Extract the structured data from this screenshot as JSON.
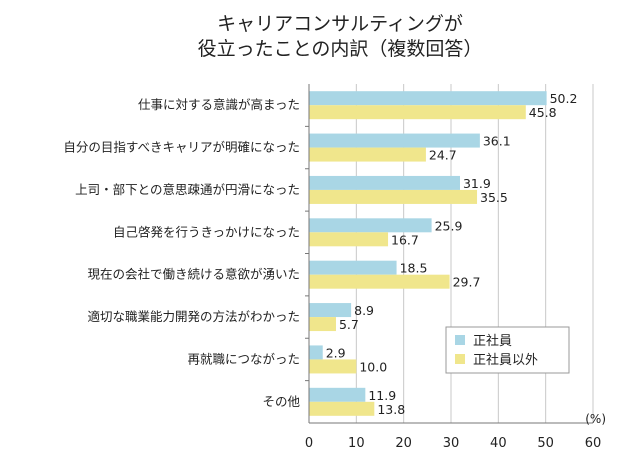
{
  "chart_data": {
    "type": "bar",
    "orientation": "horizontal",
    "title": [
      "キャリアコンサルティングが",
      "役立ったことの内訳（複数回答）"
    ],
    "categories": [
      "仕事に対する意識が高まった",
      "自分の目指すべきキャリアが明確になった",
      "上司・部下との意思疎通が円滑になった",
      "自己啓発を行うきっかけになった",
      "現在の会社で働き続ける意欲が湧いた",
      "適切な職業能力開発の方法がわかった",
      "再就職につながった",
      "その他"
    ],
    "series": [
      {
        "name": "正社員",
        "color": "#a9d6e5",
        "values": [
          50.2,
          36.1,
          31.9,
          25.9,
          18.5,
          8.9,
          2.9,
          11.9
        ]
      },
      {
        "name": "正社員以外",
        "color": "#f0e68c",
        "values": [
          45.8,
          24.7,
          35.5,
          16.7,
          29.7,
          5.7,
          10.0,
          13.8
        ]
      }
    ],
    "value_labels": [
      [
        "50.2",
        "36.1",
        "31.9",
        "25.9",
        "18.5",
        "8.9",
        "2.9",
        "11.9"
      ],
      [
        "45.8",
        "24.7",
        "35.5",
        "16.7",
        "29.7",
        "5.7",
        "10.0",
        "13.8"
      ]
    ],
    "xlim": [
      0,
      60
    ],
    "xticks": [
      0,
      10,
      20,
      30,
      40,
      50,
      60
    ],
    "xunit": "(%)",
    "grid": true,
    "legend_position": "bottom-right"
  }
}
